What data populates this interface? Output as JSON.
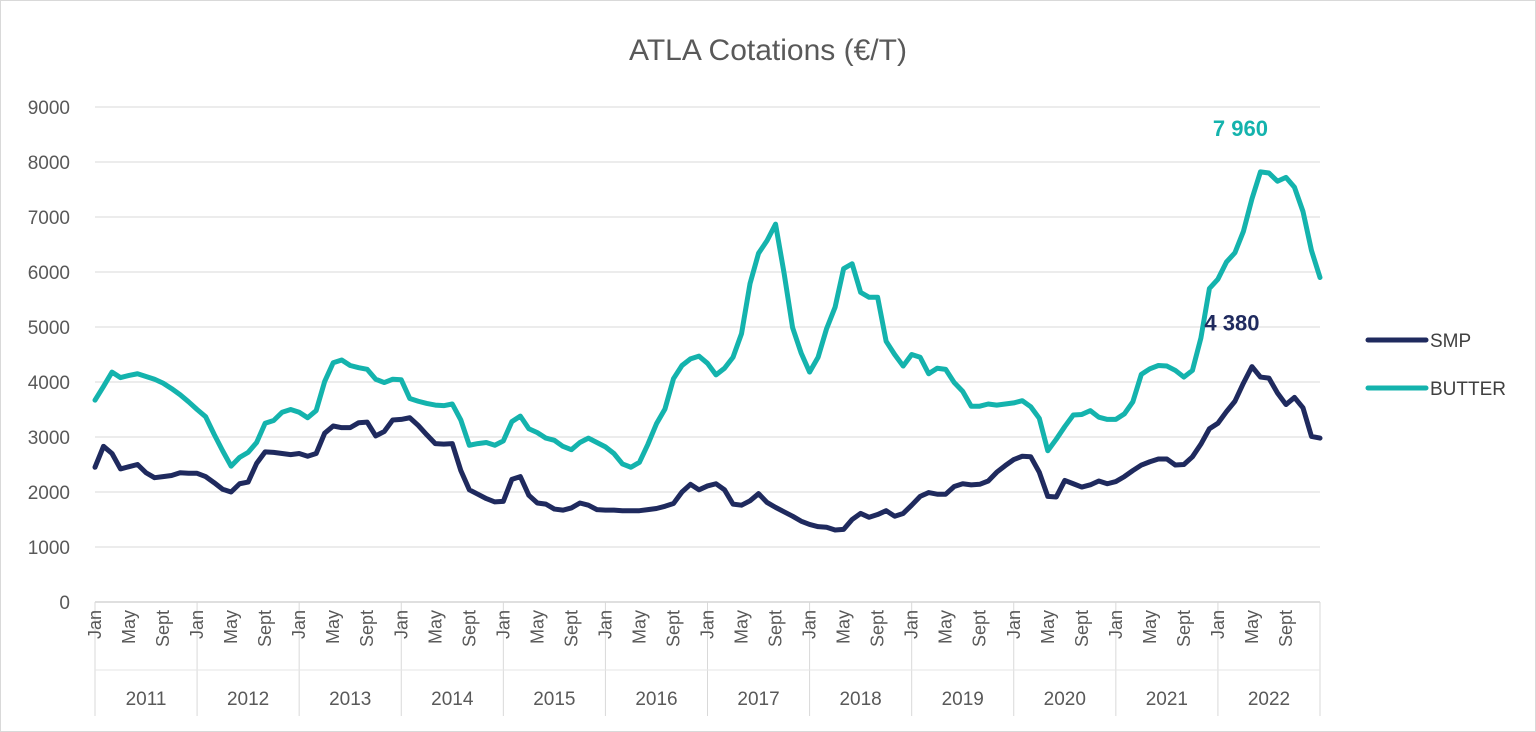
{
  "chart_data": {
    "type": "line",
    "title": "ATLA Cotations (€/T)",
    "ylim": [
      0,
      9000
    ],
    "yticks": [
      0,
      1000,
      2000,
      3000,
      4000,
      5000,
      6000,
      7000,
      8000,
      9000
    ],
    "grid": true,
    "legend_position": "right",
    "month_tick_labels": [
      "Jan",
      "May",
      "Sept"
    ],
    "years": [
      "2011",
      "2012",
      "2013",
      "2014",
      "2015",
      "2016",
      "2017",
      "2018",
      "2019",
      "2020",
      "2021",
      "2022"
    ],
    "series": [
      {
        "name": "SMP",
        "color": "#1f2a5e",
        "values": [
          2450,
          2830,
          2700,
          2420,
          2460,
          2500,
          2350,
          2260,
          2280,
          2300,
          2350,
          2340,
          2340,
          2280,
          2170,
          2050,
          2000,
          2150,
          2180,
          2520,
          2730,
          2720,
          2700,
          2680,
          2700,
          2650,
          2700,
          3070,
          3200,
          3170,
          3170,
          3260,
          3270,
          3020,
          3100,
          3310,
          3320,
          3350,
          3210,
          3040,
          2880,
          2870,
          2880,
          2390,
          2040,
          1960,
          1880,
          1820,
          1830,
          2230,
          2280,
          1940,
          1800,
          1780,
          1690,
          1670,
          1710,
          1800,
          1760,
          1680,
          1670,
          1670,
          1660,
          1660,
          1660,
          1680,
          1700,
          1740,
          1790,
          2000,
          2140,
          2040,
          2110,
          2150,
          2040,
          1780,
          1760,
          1840,
          1970,
          1810,
          1720,
          1640,
          1560,
          1470,
          1410,
          1370,
          1360,
          1310,
          1320,
          1500,
          1610,
          1540,
          1590,
          1660,
          1560,
          1610,
          1760,
          1920,
          1990,
          1960,
          1960,
          2100,
          2150,
          2130,
          2140,
          2200,
          2360,
          2480,
          2590,
          2650,
          2640,
          2360,
          1920,
          1910,
          2210,
          2150,
          2090,
          2130,
          2200,
          2150,
          2190,
          2280,
          2390,
          2490,
          2550,
          2600,
          2600,
          2490,
          2500,
          2640,
          2870,
          3150,
          3250,
          3460,
          3650,
          3980,
          4280,
          4090,
          4070,
          3800,
          3590,
          3720,
          3530,
          3010,
          2980
        ]
      },
      {
        "name": "BUTTER",
        "color": "#14b3ad",
        "values": [
          3670,
          3920,
          4180,
          4080,
          4120,
          4150,
          4100,
          4050,
          3980,
          3880,
          3770,
          3640,
          3500,
          3370,
          3050,
          2750,
          2470,
          2630,
          2720,
          2900,
          3250,
          3300,
          3450,
          3500,
          3450,
          3350,
          3480,
          4010,
          4350,
          4400,
          4300,
          4260,
          4230,
          4050,
          3990,
          4050,
          4040,
          3700,
          3650,
          3610,
          3580,
          3570,
          3600,
          3310,
          2850,
          2880,
          2900,
          2850,
          2930,
          3280,
          3380,
          3150,
          3080,
          2980,
          2940,
          2830,
          2770,
          2900,
          2980,
          2900,
          2820,
          2700,
          2510,
          2450,
          2540,
          2870,
          3240,
          3510,
          4060,
          4300,
          4420,
          4470,
          4340,
          4130,
          4250,
          4450,
          4880,
          5790,
          6340,
          6570,
          6870,
          5980,
          4990,
          4530,
          4180,
          4450,
          4970,
          5360,
          6060,
          6150,
          5630,
          5540,
          5540,
          4740,
          4500,
          4290,
          4500,
          4450,
          4150,
          4250,
          4230,
          3990,
          3830,
          3560,
          3560,
          3600,
          3580,
          3600,
          3620,
          3660,
          3550,
          3340,
          2750,
          2960,
          3190,
          3400,
          3410,
          3480,
          3360,
          3320,
          3320,
          3420,
          3640,
          4140,
          4240,
          4300,
          4290,
          4210,
          4090,
          4210,
          4800,
          5700,
          5870,
          6180,
          6350,
          6740,
          7330,
          7820,
          7800,
          7650,
          7720,
          7540,
          7100,
          6390,
          5900
        ]
      }
    ],
    "annotations": [
      {
        "series": "BUTTER",
        "text": "7 960"
      },
      {
        "series": "SMP",
        "text": "4 380"
      }
    ]
  }
}
